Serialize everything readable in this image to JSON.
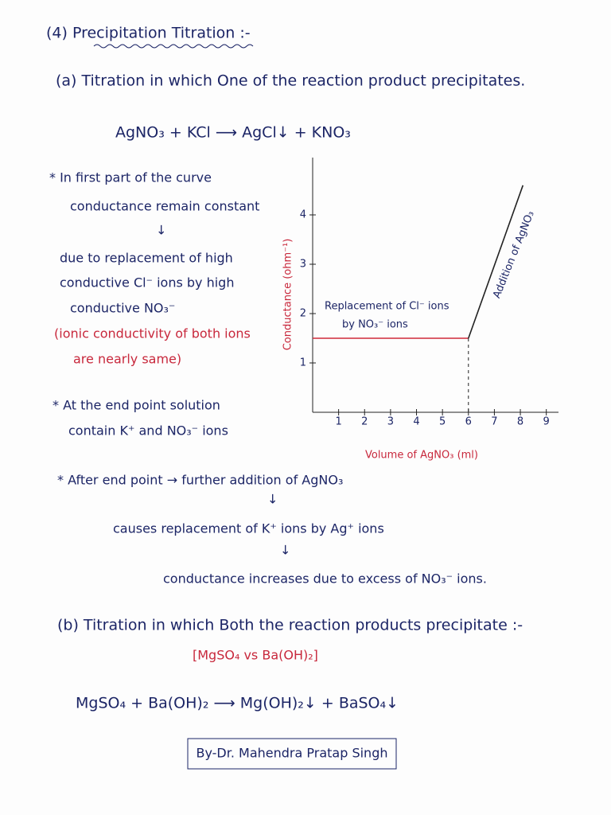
{
  "heading": "(4) Precipitation Titration :-",
  "part_a": {
    "heading": "(a) Titration in which One of the reaction product precipitates.",
    "equation": "AgNO₃ + KCl ⟶ AgCl↓ + KNO₃",
    "note_1": [
      "* In first part of the curve",
      "conductance remain constant",
      "↓",
      "due to replacement of high",
      "conductive Cl⁻ ions by high",
      "conductive NO₃⁻"
    ],
    "note_1_aside": [
      "(ionic conductivity of both ions",
      "are nearly same)"
    ],
    "note_2": [
      "* At the end point solution",
      "contain K⁺ and NO₃⁻ ions"
    ],
    "note_3": [
      "* After end point → further addition of AgNO₃",
      "↓",
      "causes replacement of K⁺ ions by Ag⁺ ions",
      "↓",
      "conductance increases due to excess of NO₃⁻ ions."
    ]
  },
  "chart_data": {
    "type": "line",
    "x_label": "Volume of AgNO₃ (ml)",
    "y_label": "Conductance (ohm⁻¹)",
    "annotations": [
      "Replacement of Cl⁻ ions",
      "by NO₃⁻ ions",
      "Addition of AgNO₃"
    ],
    "xlim": [
      0,
      9.5
    ],
    "ylim": [
      0,
      5
    ],
    "xticks": [
      1,
      2,
      3,
      4,
      5,
      6,
      7,
      8,
      9
    ],
    "yticks": [
      1,
      2,
      3,
      4
    ],
    "series": [
      {
        "color": "#d02a3a",
        "x": [
          0,
          6
        ],
        "values": [
          1.5,
          1.5
        ]
      },
      {
        "color": "#222222",
        "x": [
          6,
          8.1
        ],
        "values": [
          1.5,
          4.6
        ]
      }
    ]
  },
  "part_b": {
    "heading": "(b) Titration in which Both the reaction products precipitate :-",
    "pair": "[MgSO₄ vs Ba(OH)₂]",
    "equation": "MgSO₄ + Ba(OH)₂ ⟶ Mg(OH)₂↓ + BaSO₄↓"
  },
  "credit": "By-Dr. Mahendra Pratap Singh"
}
